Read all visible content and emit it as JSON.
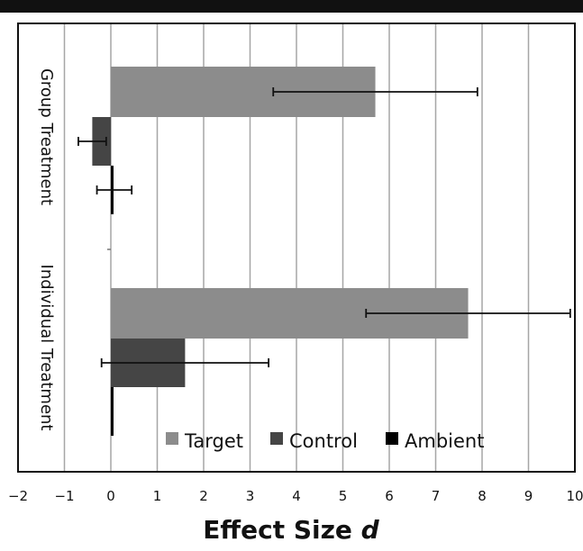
{
  "chart_data": {
    "type": "bar",
    "orientation": "horizontal",
    "categories": [
      "Group Treatment",
      "Individual Treatment"
    ],
    "series": [
      {
        "name": "Target",
        "color": "#8c8c8c",
        "values": [
          5.7,
          7.7
        ],
        "err_low": [
          3.5,
          5.5
        ],
        "err_high": [
          7.9,
          9.9
        ]
      },
      {
        "name": "Control",
        "color": "#454545",
        "values": [
          -0.4,
          1.6
        ],
        "err_low": [
          -0.7,
          -0.2
        ],
        "err_high": [
          -0.1,
          3.4
        ]
      },
      {
        "name": "Ambient",
        "color": "#000000",
        "values": [
          0.05,
          0.0
        ],
        "err_low": [
          -0.3,
          null
        ],
        "err_high": [
          0.45,
          null
        ]
      }
    ],
    "xlim": [
      -2,
      10
    ],
    "xticks": [
      "−2",
      "−1",
      "0",
      "1",
      "2",
      "3",
      "4",
      "5",
      "6",
      "7",
      "8",
      "9",
      "10"
    ],
    "xlabel": "Effect Size",
    "xlabel_var": "d",
    "ylabel": "",
    "grid": "vertical",
    "legend_position": "bottom-inside"
  }
}
